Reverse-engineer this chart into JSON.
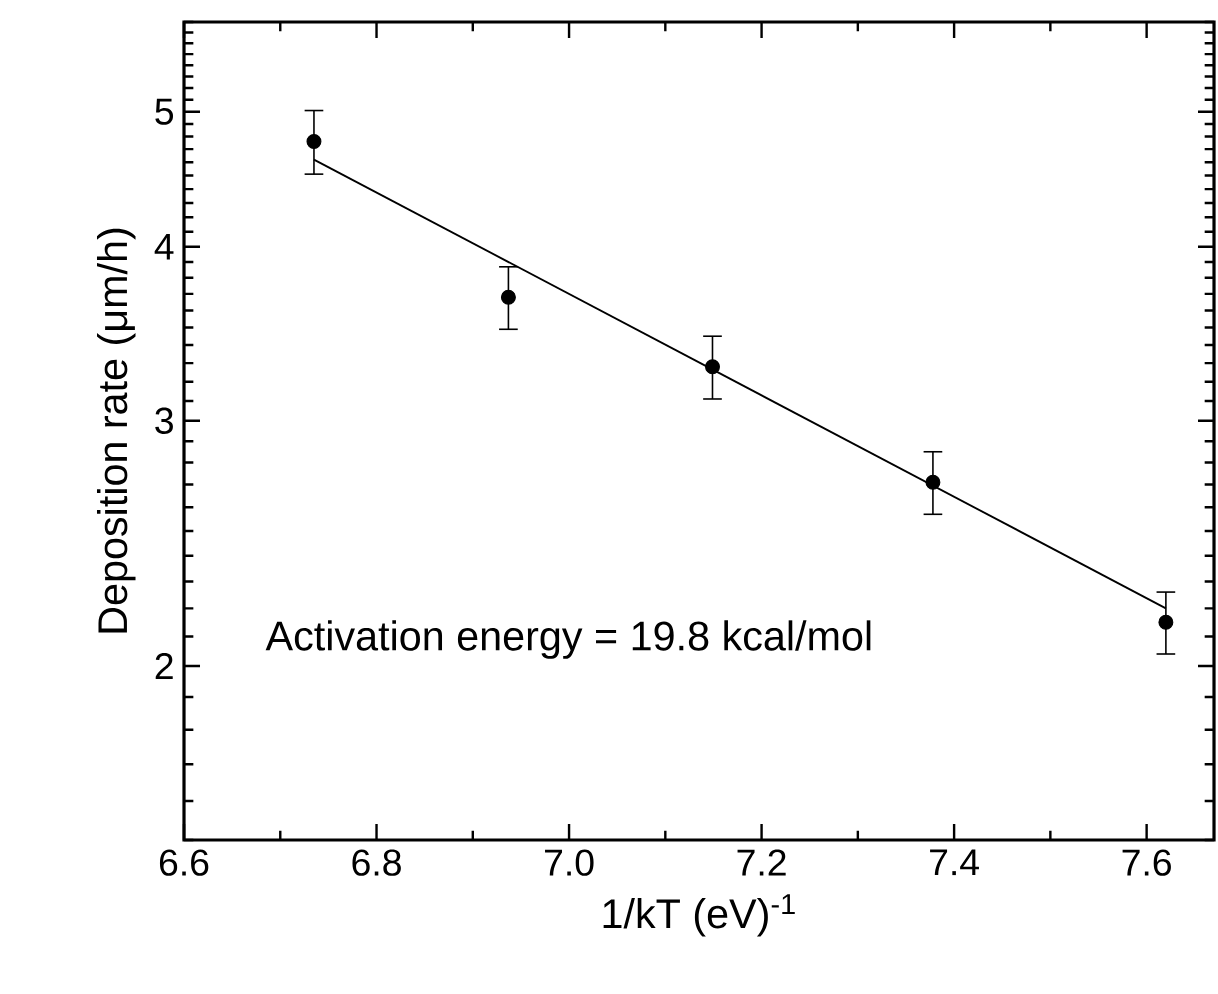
{
  "chart_data": {
    "type": "scatter",
    "xlabel": "1/kT (eV)$^{-1}$",
    "ylabel": "Deposition rate (μm/h)",
    "log": "y",
    "xlim": [
      6.6,
      7.67
    ],
    "xticks": [
      {
        "value": 6.6,
        "label": "6.6"
      },
      {
        "value": 6.8,
        "label": "6.8"
      },
      {
        "value": 7.0,
        "label": "7.0"
      },
      {
        "value": 7.2,
        "label": "7.2"
      },
      {
        "value": 7.4,
        "label": "7.4"
      },
      {
        "value": 7.6,
        "label": "7.6"
      }
    ],
    "ylim": [
      1.5,
      5.8
    ],
    "yticks": [
      2,
      3,
      4,
      5
    ],
    "grid": false,
    "annotations": [
      "Activation energy = 19.8 kcal/mol"
    ],
    "series": [
      {
        "marker": "circle",
        "color": "#000000",
        "x": [
          6.735,
          6.937,
          7.149,
          7.378,
          7.62
        ],
        "values": [
          4.76,
          3.68,
          3.28,
          2.71,
          2.15
        ],
        "errors": [
          0.25,
          0.19,
          0.17,
          0.14,
          0.11
        ]
      },
      {
        "type": "line",
        "marker": "none",
        "color": "#000000",
        "x": [
          6.735,
          7.62
        ],
        "values": [
          4.62,
          2.2
        ]
      }
    ]
  }
}
